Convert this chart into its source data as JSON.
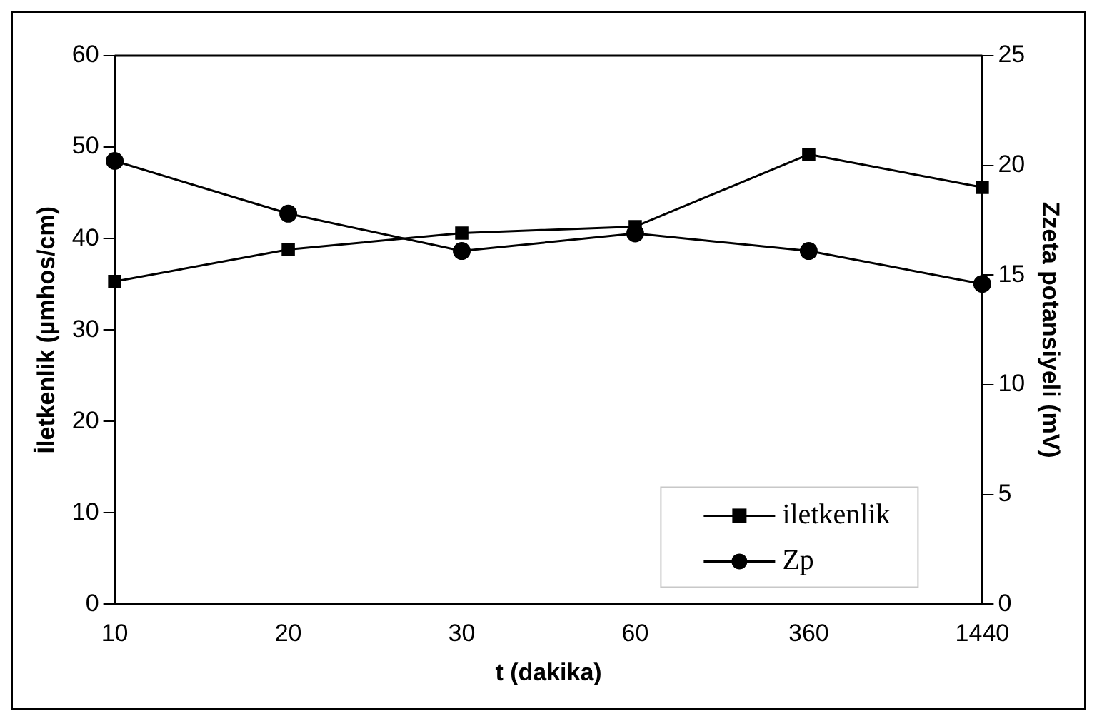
{
  "chart_data": {
    "type": "line",
    "xlabel": "t (dakika)",
    "ylabel": "İletkenlik (µmhos/cm)",
    "y2label": "Zzeta potansiyeli (mV)",
    "categories": [
      "10",
      "20",
      "30",
      "60",
      "360",
      "1440"
    ],
    "series": [
      {
        "name": "iletkenlik",
        "color": "#000000",
        "marker": "square",
        "values": [
          35.3,
          38.8,
          40.6,
          41.3,
          49.2,
          45.6
        ]
      },
      {
        "name": "Zp",
        "color": "#000000",
        "marker": "circle",
        "axis": "y2",
        "values": [
          20.2,
          17.8,
          16.1,
          16.9,
          16.1,
          14.6
        ]
      }
    ],
    "ylim": [
      0,
      60
    ],
    "yticks": [
      0,
      10,
      20,
      30,
      40,
      50,
      60
    ],
    "y2lim": [
      0,
      25
    ],
    "y2ticks": [
      0,
      5,
      10,
      15,
      20,
      25
    ],
    "grid": false,
    "legend": "bottom right"
  }
}
